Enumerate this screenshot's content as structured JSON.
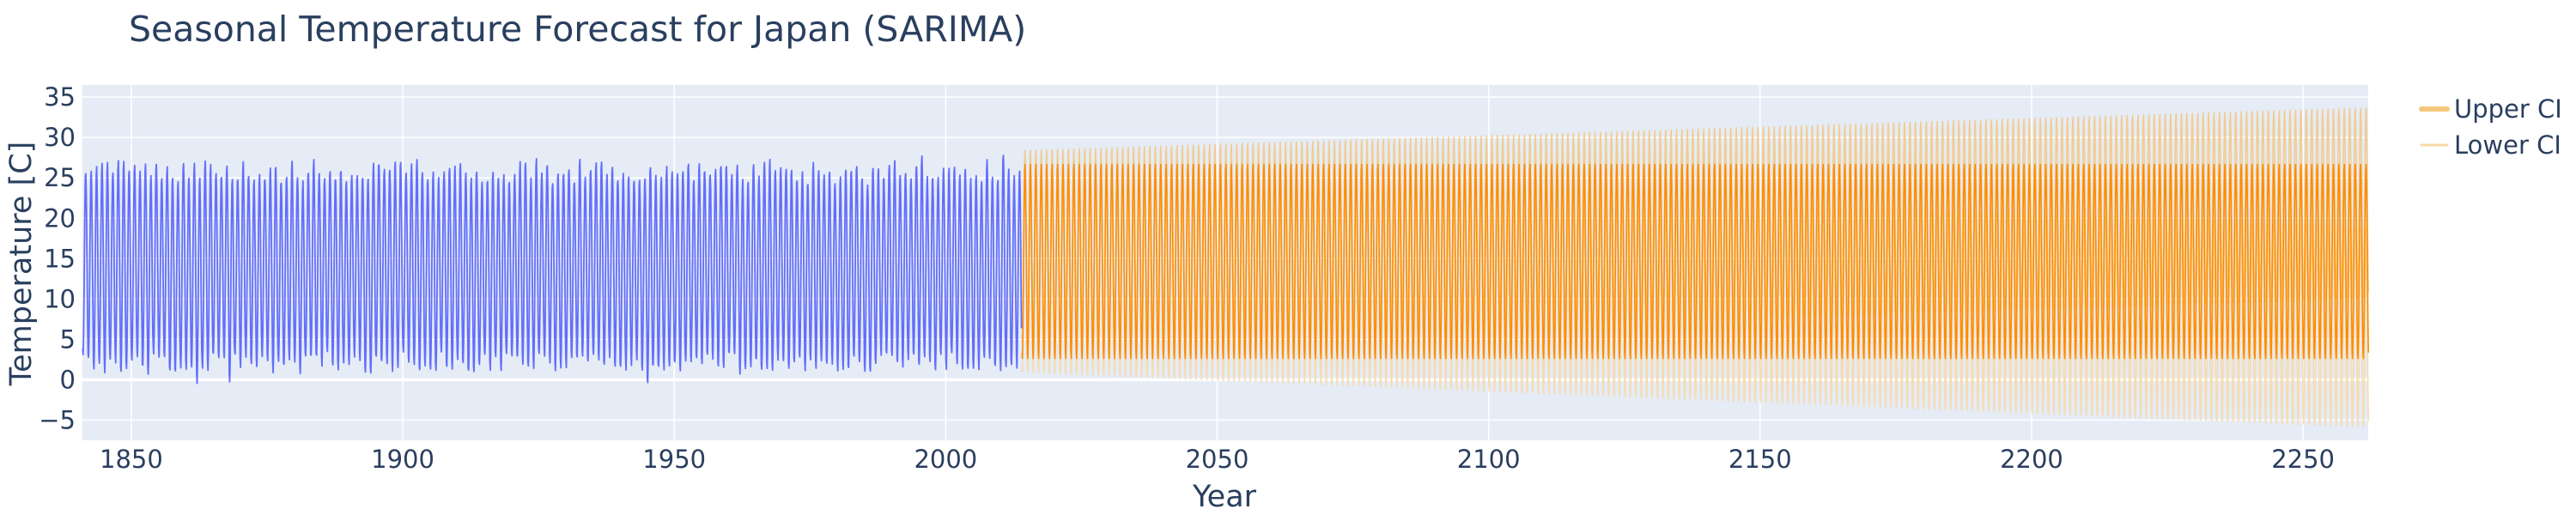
{
  "chart_data": {
    "type": "line",
    "title": "Seasonal Temperature Forecast for Japan (SARIMA)",
    "xlabel": "Year",
    "ylabel": "Temperature [C]",
    "xlim": [
      1841,
      2262
    ],
    "ylim": [
      -7.5,
      36.5
    ],
    "xticks": [
      1850,
      1900,
      1950,
      2000,
      2050,
      2100,
      2150,
      2200,
      2250
    ],
    "yticks": [
      -5,
      0,
      5,
      10,
      15,
      20,
      25,
      30,
      35
    ],
    "grid": true,
    "legend_position": "top-right",
    "plot_background": "#e5ecf6",
    "series": [
      {
        "kind": "observed",
        "color": "#636efa",
        "x_range": [
          1841,
          2013.9
        ],
        "points_per_year": 12,
        "summer_max_mean": 25.8,
        "winter_min_mean": 2.0,
        "notable_peaks": [
          {
            "x": 2010.6,
            "y": 28.0
          },
          {
            "x": 1995.6,
            "y": 27.5
          },
          {
            "x": 1924.6,
            "y": 27.2
          }
        ],
        "notable_troughs": [
          {
            "x": 1945.1,
            "y": -0.5
          },
          {
            "x": 1868.1,
            "y": -0.3
          },
          {
            "x": 1862.1,
            "y": -0.2
          }
        ]
      },
      {
        "kind": "forecast",
        "color": "#ff8c00",
        "x_range": [
          2014,
          2262
        ],
        "points_per_year": 12,
        "summer_max": 26.8,
        "winter_min": 2.5
      },
      {
        "name": "Upper CI",
        "color": "#f5c77e",
        "x_range": [
          2014,
          2262
        ],
        "points_per_year": 12,
        "summer_max_start": 28.5,
        "summer_max_end": 33.8,
        "winter_min_start": 4.5,
        "winter_min_end": 10.0
      },
      {
        "name": "Lower CI",
        "color": "#f7d9a8",
        "x_range": [
          2014,
          2262
        ],
        "points_per_year": 12,
        "summer_max_start": 25.2,
        "summer_max_end": 19.0,
        "winter_min_start": 0.8,
        "winter_min_end": -6.0
      }
    ]
  }
}
